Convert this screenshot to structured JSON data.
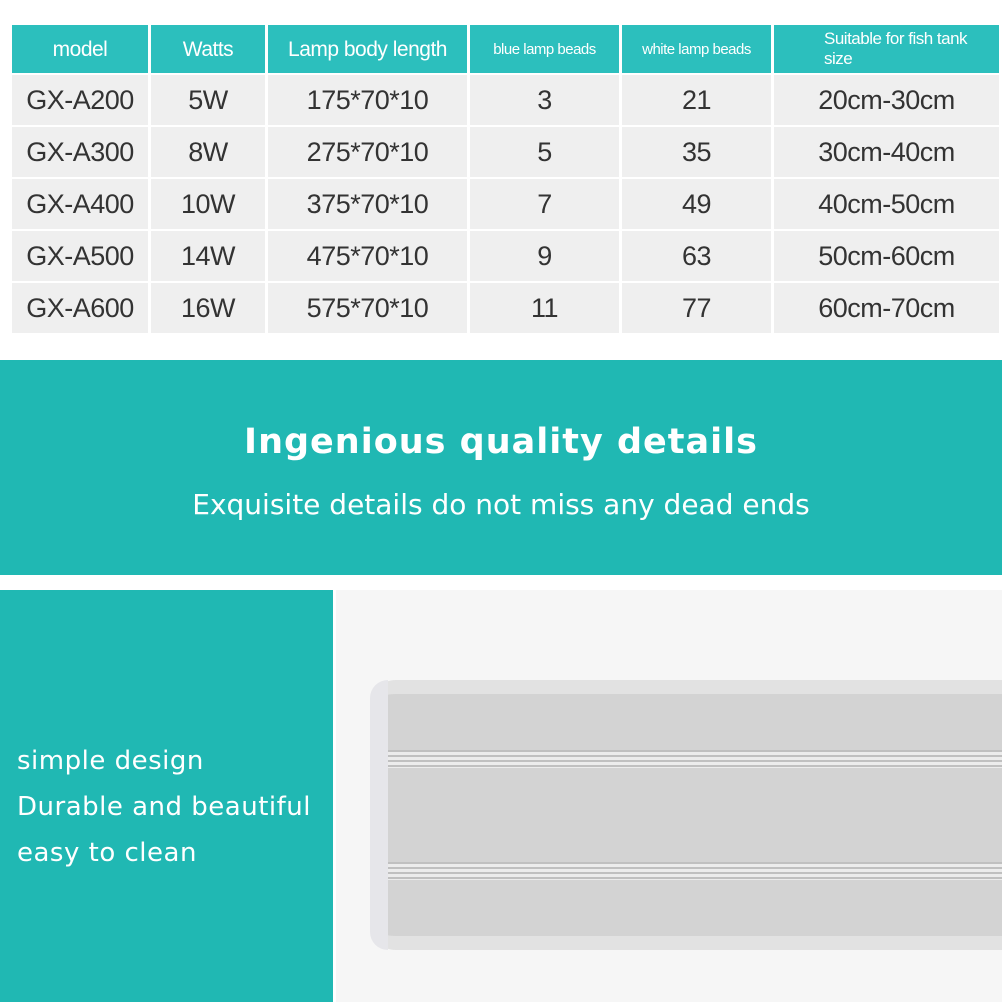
{
  "table": {
    "headers": [
      "model",
      "Watts",
      "Lamp body length",
      "blue lamp beads",
      "white lamp beads",
      "Suitable for fish tank size"
    ],
    "rows": [
      [
        "GX-A200",
        "5W",
        "175*70*10",
        "3",
        "21",
        "20cm-30cm"
      ],
      [
        "GX-A300",
        "8W",
        "275*70*10",
        "5",
        "35",
        "30cm-40cm"
      ],
      [
        "GX-A400",
        "10W",
        "375*70*10",
        "7",
        "49",
        "40cm-50cm"
      ],
      [
        "GX-A500",
        "14W",
        "475*70*10",
        "9",
        "63",
        "50cm-60cm"
      ],
      [
        "GX-A600",
        "16W",
        "575*70*10",
        "11",
        "77",
        "60cm-70cm"
      ]
    ]
  },
  "banner": {
    "title": "Ingenious quality details",
    "subtitle": "Exquisite details do not miss any dead ends"
  },
  "features": [
    "simple design",
    "Durable and beautiful",
    "easy to clean"
  ],
  "colors": {
    "accent": "#20b8b3",
    "header": "#2cbfbd",
    "cell": "#efefef"
  }
}
